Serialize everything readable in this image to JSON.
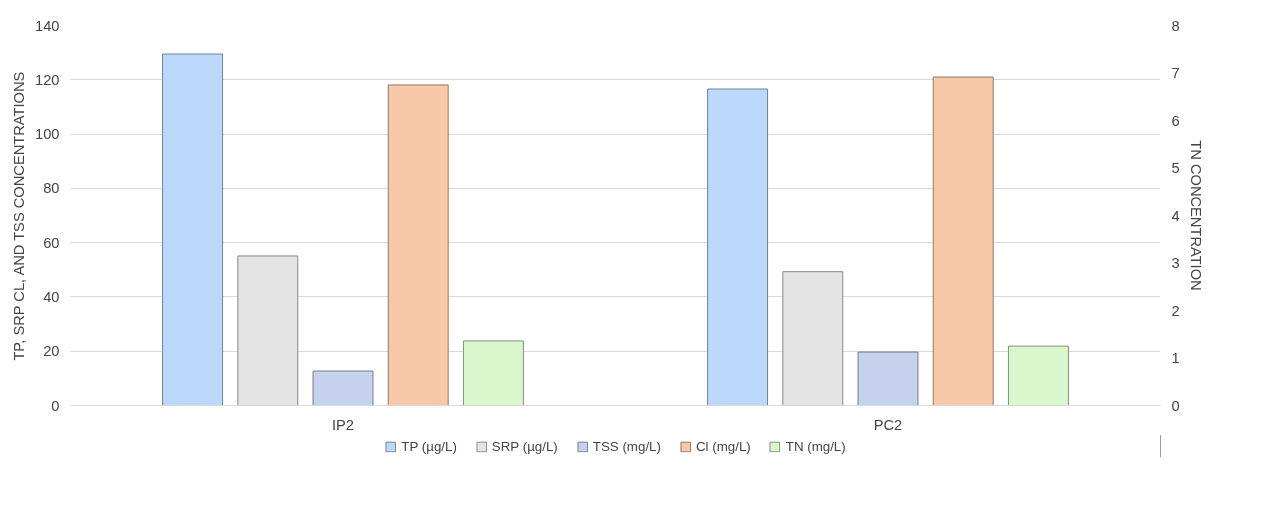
{
  "chart_data": {
    "type": "bar",
    "categories": [
      "IP2",
      "PC2"
    ],
    "ylabel": "TP, SRP CL, AND TSS CONCENTRATIONS",
    "y2label": "TN CONCENTRATION",
    "ylim": [
      0,
      140
    ],
    "yticks": [
      0,
      20,
      40,
      60,
      80,
      100,
      120,
      140
    ],
    "y2lim": [
      0,
      8
    ],
    "y2ticks": [
      0,
      1,
      2,
      3,
      4,
      5,
      6,
      7,
      8
    ],
    "grid": "y",
    "legend": "bottom",
    "series": [
      {
        "name": "TP (µg/L)",
        "color": "#bcd9fb",
        "values": [
          129.5,
          116.6
        ]
      },
      {
        "name": "SRP (µg/L)",
        "color": "#e4e4e4",
        "values": [
          55.1,
          49.3
        ]
      },
      {
        "name": "TSS (mg/L)",
        "color": "#c6d1ee",
        "values": [
          12.7,
          19.7
        ]
      },
      {
        "name": "Cl (mg/L)",
        "color": "#f7c9a9",
        "values": [
          118.1,
          121
        ]
      },
      {
        "name": "TN (mg/L)",
        "color": "#daf6cc",
        "values": [
          1.36,
          1.25
        ],
        "axis": "y2"
      }
    ]
  }
}
